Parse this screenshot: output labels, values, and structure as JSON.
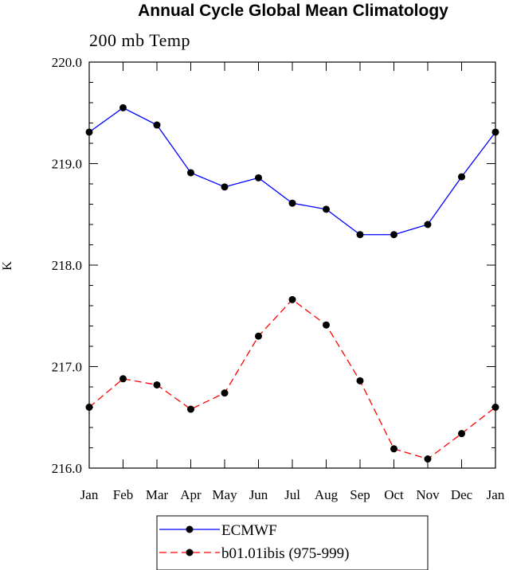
{
  "chart_data": {
    "type": "line",
    "title": "Annual Cycle Global Mean Climatology",
    "subtitle": "200 mb Temp",
    "xlabel": "",
    "ylabel": "K",
    "categories": [
      "Jan",
      "Feb",
      "Mar",
      "Apr",
      "May",
      "Jun",
      "Jul",
      "Aug",
      "Sep",
      "Oct",
      "Nov",
      "Dec",
      "Jan"
    ],
    "ylim": [
      216.0,
      220.0
    ],
    "yticks": [
      216.0,
      217.0,
      218.0,
      219.0,
      220.0
    ],
    "ytick_labels": [
      "216.0",
      "217.0",
      "218.0",
      "219.0",
      "220.0"
    ],
    "grid": false,
    "legend_position": "bottom-center",
    "series": [
      {
        "name": "ECMWF",
        "color": "#0000ff",
        "line_style": "solid",
        "marker": "filled-circle",
        "values": [
          219.31,
          219.55,
          219.38,
          218.91,
          218.77,
          218.86,
          218.61,
          218.55,
          218.3,
          218.3,
          218.4,
          218.87,
          219.31
        ]
      },
      {
        "name": "b01.01ibis (975-999)",
        "color": "#ff0000",
        "line_style": "dashed",
        "marker": "filled-circle",
        "values": [
          216.6,
          216.88,
          216.82,
          216.58,
          216.74,
          217.3,
          217.66,
          217.41,
          216.86,
          216.19,
          216.09,
          216.34,
          216.6
        ]
      }
    ]
  }
}
